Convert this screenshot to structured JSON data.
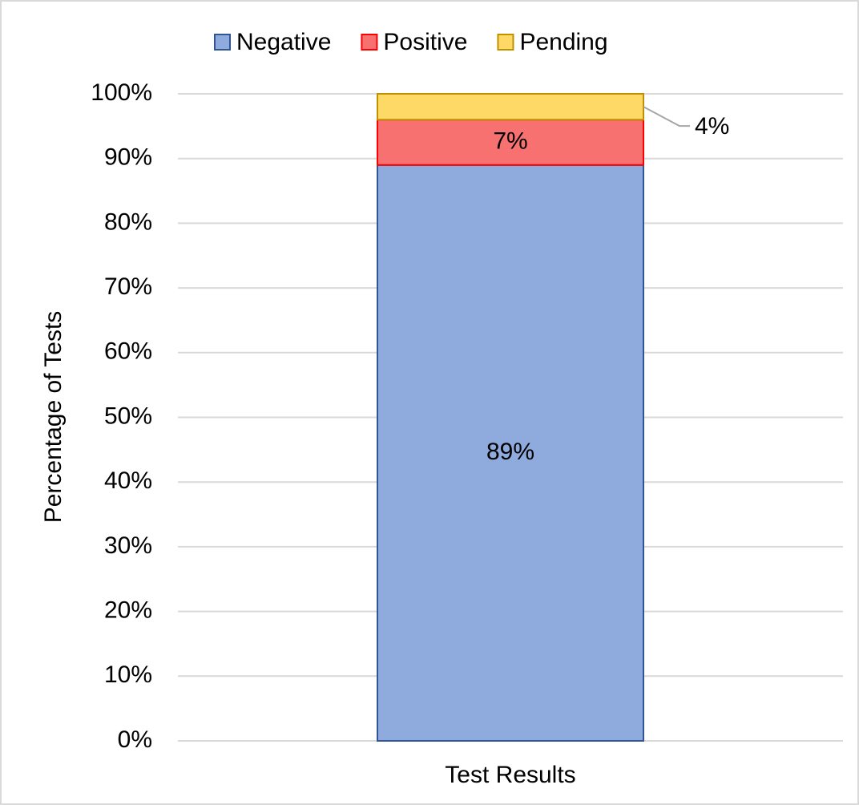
{
  "chart_data": {
    "type": "stacked_bar",
    "categories": [
      "Test Results"
    ],
    "ylabel": "Percentage of Tests",
    "ylim": [
      0,
      100
    ],
    "yticks": [
      {
        "value": 0,
        "label": "0%"
      },
      {
        "value": 10,
        "label": "10%"
      },
      {
        "value": 20,
        "label": "20%"
      },
      {
        "value": 30,
        "label": "30%"
      },
      {
        "value": 40,
        "label": "40%"
      },
      {
        "value": 50,
        "label": "50%"
      },
      {
        "value": 60,
        "label": "60%"
      },
      {
        "value": 70,
        "label": "70%"
      },
      {
        "value": 80,
        "label": "80%"
      },
      {
        "value": 90,
        "label": "90%"
      },
      {
        "value": 100,
        "label": "100%"
      }
    ],
    "grid": true,
    "legend": "top",
    "series": [
      {
        "name": "Negative",
        "color": "#8faadc",
        "edge": "#2f5597",
        "values": [
          89
        ],
        "value_labels": [
          "89%"
        ]
      },
      {
        "name": "Positive",
        "color": "#f87171",
        "edge": "#ff0000",
        "values": [
          7
        ],
        "value_labels": [
          "7%"
        ]
      },
      {
        "name": "Pending",
        "color": "#ffd966",
        "edge": "#bf9000",
        "values": [
          4
        ],
        "value_labels": [
          "4%"
        ]
      }
    ]
  }
}
